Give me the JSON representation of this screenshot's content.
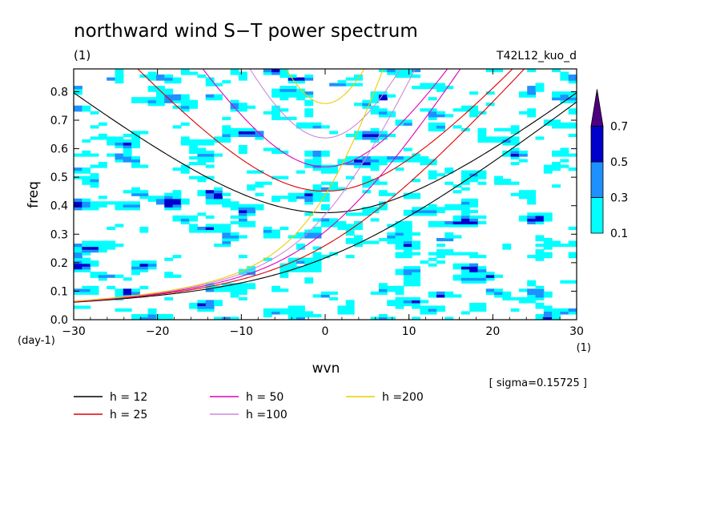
{
  "chart_data": {
    "type": "heatmap",
    "title": "northward wind S−T power spectrum",
    "unit_label": "(1)",
    "run_label": "T42L12_kuo_d",
    "xlabel": "wvn",
    "x_unit": "(1)",
    "ylabel": "freq",
    "y_unit": "(day-1)",
    "xlim": [
      -30,
      30
    ],
    "ylim": [
      0.0,
      0.88
    ],
    "x_ticks": [
      "−30",
      "−20",
      "−10",
      "0",
      "10",
      "20",
      "30"
    ],
    "x_tick_values": [
      -30,
      -20,
      -10,
      0,
      10,
      20,
      30
    ],
    "y_ticks": [
      "0.0",
      "0.1",
      "0.2",
      "0.3",
      "0.4",
      "0.5",
      "0.6",
      "0.7",
      "0.8"
    ],
    "y_tick_values": [
      0.0,
      0.1,
      0.2,
      0.3,
      0.4,
      0.5,
      0.6,
      0.7,
      0.8
    ],
    "colorbar": {
      "levels": [
        0.1,
        0.3,
        0.5,
        0.7
      ],
      "labels": [
        "0.1",
        "0.3",
        "0.5",
        "0.7"
      ],
      "colors": [
        "#00ffff",
        "#1e90ff",
        "#0000cd",
        "#4b0082"
      ]
    },
    "sigma_label": "[ sigma=0.15725 ]",
    "dispersion_curves": [
      {
        "name": "h = 12",
        "h": 12,
        "color": "#000000"
      },
      {
        "name": "h = 25",
        "h": 25,
        "color": "#dd0000"
      },
      {
        "name": "h = 50",
        "h": 50,
        "color": "#dd00bb"
      },
      {
        "name": "h =100",
        "h": 100,
        "color": "#cc88dd"
      },
      {
        "name": "h =200",
        "h": 200,
        "color": "#eecc00"
      }
    ]
  }
}
